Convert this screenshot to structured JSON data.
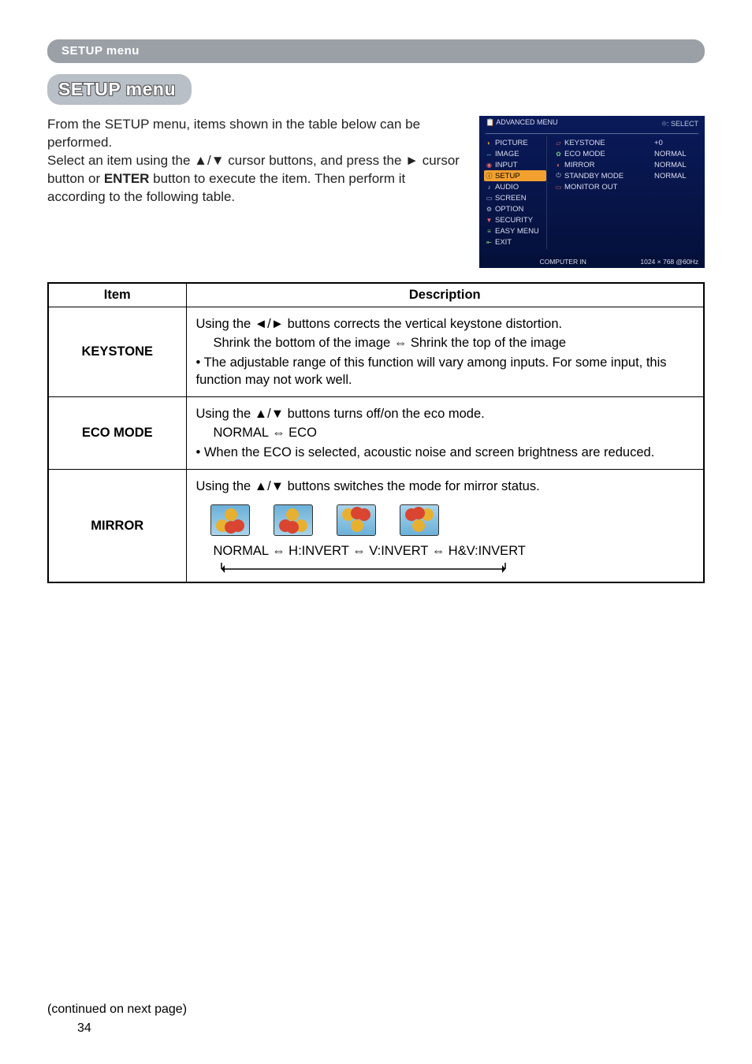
{
  "header_bar": "SETUP menu",
  "title": "SETUP menu",
  "intro": "From the SETUP menu, items shown in the table below can be performed.\nSelect an item using the ▲/▼ cursor buttons, and press the ► cursor button or ENTER button to execute the item. Then perform it according to the following table.",
  "intro_lines": {
    "l1": "From the SETUP menu, items shown in the table below can be performed.",
    "l2": "Select an item using the ▲/▼ cursor buttons, and press the ► cursor button or ",
    "enter_word": "ENTER",
    "l2b": " button to execute the item. Then perform it according to the following table."
  },
  "osd": {
    "top_left": "ADVANCED MENU",
    "top_right": "⯐: SELECT",
    "left_items": [
      {
        "icon": "◐",
        "label": "PICTURE",
        "color": "#f2a030"
      },
      {
        "icon": "↔",
        "label": "IMAGE",
        "color": "#6cc"
      },
      {
        "icon": "◉",
        "label": "INPUT",
        "color": "#e66"
      },
      {
        "icon": "ⓘ",
        "label": "SETUP",
        "active": true
      },
      {
        "icon": "♪",
        "label": "AUDIO",
        "color": "#bcd"
      },
      {
        "icon": "▭",
        "label": "SCREEN",
        "color": "#bcd"
      },
      {
        "icon": "⚙",
        "label": "OPTION",
        "color": "#bcd"
      },
      {
        "icon": "▼",
        "label": "SECURITY",
        "color": "#e66"
      },
      {
        "icon": "≡",
        "label": "EASY MENU",
        "color": "#7c7"
      },
      {
        "icon": "⇤",
        "label": "EXIT",
        "color": "#7c7"
      }
    ],
    "mid_items": [
      {
        "icon": "▱",
        "label": "KEYSTONE",
        "color": "#e66"
      },
      {
        "icon": "✿",
        "label": "ECO MODE",
        "color": "#7c7"
      },
      {
        "icon": "◐",
        "label": "MIRROR",
        "color": "#e66"
      },
      {
        "icon": "⏻",
        "label": "STANDBY MODE",
        "color": "#bcd"
      },
      {
        "icon": "▭",
        "label": "MONITOR OUT",
        "color": "#e66"
      }
    ],
    "right_vals": [
      "+0",
      "NORMAL",
      "NORMAL",
      "NORMAL",
      ""
    ],
    "bottom_left": "COMPUTER IN",
    "bottom_right": "1024 × 768 @60Hz"
  },
  "table": {
    "headers": {
      "item": "Item",
      "desc": "Description"
    },
    "rows": [
      {
        "label": "KEYSTONE",
        "lines": {
          "a": "Using the ◄/► buttons corrects the vertical keystone distortion.",
          "b": "Shrink the bottom of the image ⇔ Shrink the top of the image",
          "c": "• The adjustable range of this function will vary among inputs. For some input, this function may not work well."
        }
      },
      {
        "label": "ECO MODE",
        "lines": {
          "a": "Using the ▲/▼ buttons turns off/on the eco mode.",
          "b": "NORMAL ⇔ ECO",
          "c": "• When the ECO is selected, acoustic noise and screen brightness are reduced."
        }
      },
      {
        "label": "MIRROR",
        "lines": {
          "a": "Using the ▲/▼ buttons switches the mode for mirror status.",
          "b": "NORMAL ⇔ H:INVERT ⇔ V:INVERT ⇔ H&V:INVERT"
        }
      }
    ]
  },
  "mirror_variants": [
    {
      "transform": "none"
    },
    {
      "transform": "scaleX(-1)"
    },
    {
      "transform": "scaleY(-1)"
    },
    {
      "transform": "scale(-1,-1)"
    }
  ],
  "continued": "(continued on next page)",
  "page_num": "34",
  "colors": {
    "header_bg": "#9aa0a6",
    "chip_bg": "#b8bfc6",
    "osd_bg": "#0a1a5a",
    "osd_active": "#f2a030",
    "osd_text": "#dde8f4"
  }
}
